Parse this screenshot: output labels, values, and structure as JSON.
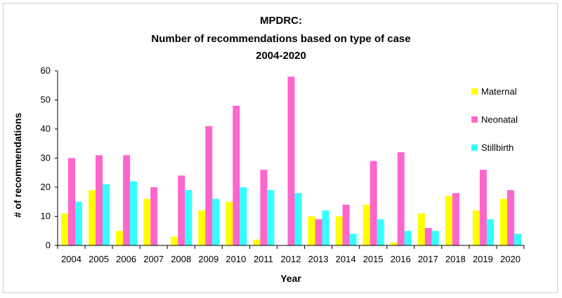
{
  "chart_data": {
    "type": "bar",
    "title_lines": [
      "MPDRC:",
      "Number of recommendations based on type of case",
      "2004-2020"
    ],
    "xlabel": "Year",
    "ylabel": "# of recommendations",
    "ylim": [
      0,
      60
    ],
    "yticks": [
      0,
      10,
      20,
      30,
      40,
      50,
      60
    ],
    "grid": false,
    "legend_position": "right",
    "categories": [
      "2004",
      "2005",
      "2006",
      "2007",
      "2008",
      "2009",
      "2010",
      "2011",
      "2012",
      "2013",
      "2014",
      "2015",
      "2016",
      "2017",
      "2018",
      "2019",
      "2020"
    ],
    "series": [
      {
        "name": "Maternal",
        "color": "#ffff00",
        "values": [
          11,
          19,
          5,
          16,
          3,
          12,
          15,
          2,
          0,
          10,
          10,
          14,
          1,
          11,
          17,
          12,
          16
        ]
      },
      {
        "name": "Neonatal",
        "color": "#ff66cc",
        "values": [
          30,
          31,
          31,
          20,
          24,
          41,
          48,
          26,
          58,
          9,
          14,
          29,
          32,
          6,
          18,
          26,
          19
        ]
      },
      {
        "name": "Stillbirth",
        "color": "#33ffff",
        "values": [
          15,
          21,
          22,
          0,
          19,
          16,
          20,
          19,
          18,
          12,
          4,
          9,
          5,
          5,
          0,
          9,
          4
        ]
      }
    ]
  }
}
